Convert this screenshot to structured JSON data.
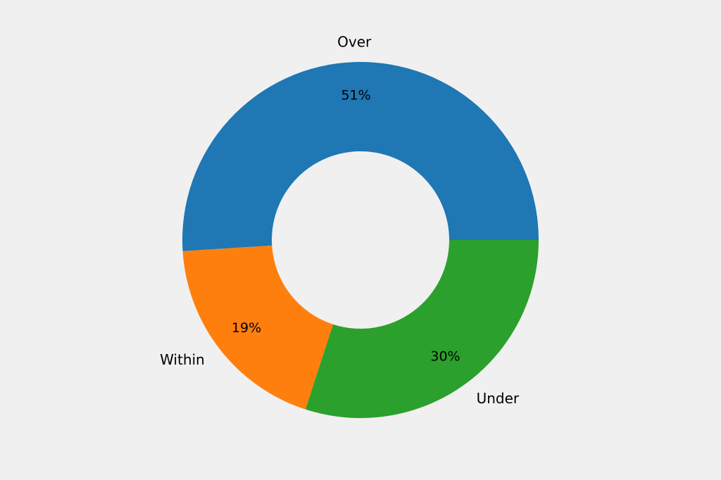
{
  "chart_data": {
    "type": "pie",
    "donut": true,
    "start_angle_deg": 0,
    "direction": "counterclockwise",
    "slices": [
      {
        "label": "Over",
        "value": 51,
        "pct_label": "51%",
        "color": "#1f77b4"
      },
      {
        "label": "Within",
        "value": 19,
        "pct_label": "19%",
        "color": "#ff7f0e"
      },
      {
        "label": "Under",
        "value": 30,
        "pct_label": "30%",
        "color": "#2ca02c"
      }
    ]
  }
}
